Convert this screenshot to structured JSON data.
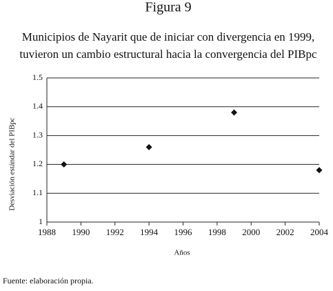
{
  "chart_data": {
    "type": "scatter",
    "figure_label": "Figura 9",
    "title": [
      "Municipios de Nayarit que de iniciar con divergencia en 1999,",
      "tuvieron un cambio estructural hacia la convergencia del PIBpc"
    ],
    "x_label": "Años",
    "y_label": "Desviación estándar del PIBpc",
    "source": "Fuente: elaboración propia.",
    "x": [
      1989,
      1994,
      1999,
      2004
    ],
    "values": [
      1.2,
      1.26,
      1.38,
      1.18
    ],
    "color": "#111111",
    "xlim": [
      1988,
      2004
    ],
    "xticks": [
      1988,
      1990,
      1992,
      1994,
      1996,
      1998,
      2000,
      2002,
      2004
    ],
    "ylim": [
      1,
      1.5
    ],
    "yticks": [
      1,
      1.1,
      1.2,
      1.3,
      1.4,
      1.5
    ],
    "grid": true
  }
}
